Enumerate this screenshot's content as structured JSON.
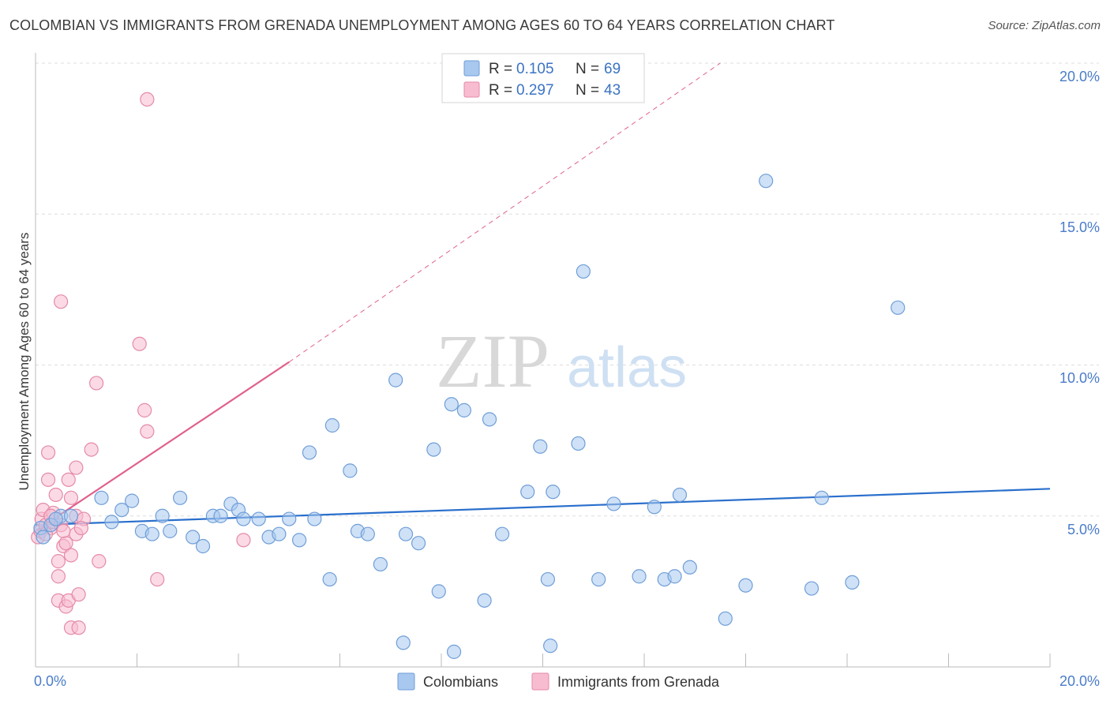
{
  "header": {
    "title": "COLOMBIAN VS IMMIGRANTS FROM GRENADA UNEMPLOYMENT AMONG AGES 60 TO 64 YEARS CORRELATION CHART",
    "source": "Source: ZipAtlas.com"
  },
  "watermark": {
    "zip": "ZIP",
    "atlas": "atlas"
  },
  "legend": {
    "rows": [
      {
        "r_label": "R = ",
        "r_value": "0.105",
        "n_label": "N = ",
        "n_value": "69"
      },
      {
        "r_label": "R = ",
        "r_value": "0.297",
        "n_label": "N = ",
        "n_value": "43"
      }
    ]
  },
  "bottom_legend": {
    "series1": "Colombians",
    "series2": "Immigrants from Grenada"
  },
  "colors": {
    "blue_fill": "#a8c8ef",
    "blue_stroke": "#6f9ed8",
    "blue_line": "#2a6fcc",
    "pink_fill": "#f7bcd0",
    "pink_stroke": "#e58aa8",
    "pink_line": "#e0618c",
    "tick": "#4a7cc9",
    "grid": "#dddddd"
  },
  "chart_data": {
    "type": "scatter",
    "title": "COLOMBIAN VS IMMIGRANTS FROM GRENADA UNEMPLOYMENT AMONG AGES 60 TO 64 YEARS CORRELATION CHART",
    "xlabel": "",
    "ylabel": "Unemployment Among Ages 60 to 64 years",
    "xlim": [
      0,
      20
    ],
    "ylim": [
      0,
      20
    ],
    "x_tick_labels": [
      "0.0%",
      "20.0%"
    ],
    "y_ticks": [
      5,
      10,
      15,
      20
    ],
    "y_tick_labels": [
      "5.0%",
      "10.0%",
      "15.0%",
      "20.0%"
    ],
    "series": [
      {
        "name": "Colombians",
        "R": 0.105,
        "N": 69,
        "trend": {
          "x": [
            0,
            20
          ],
          "y": [
            4.7,
            5.9
          ],
          "style": "solid"
        },
        "points": [
          [
            0.1,
            4.6
          ],
          [
            0.3,
            4.7
          ],
          [
            0.5,
            5.0
          ],
          [
            0.7,
            5.0
          ],
          [
            1.3,
            5.6
          ],
          [
            1.5,
            4.8
          ],
          [
            1.7,
            5.2
          ],
          [
            1.9,
            5.5
          ],
          [
            2.1,
            4.5
          ],
          [
            2.3,
            4.4
          ],
          [
            2.5,
            5.0
          ],
          [
            2.65,
            4.5
          ],
          [
            2.85,
            5.6
          ],
          [
            3.1,
            4.3
          ],
          [
            3.3,
            4.0
          ],
          [
            3.5,
            5.0
          ],
          [
            3.65,
            5.0
          ],
          [
            3.85,
            5.4
          ],
          [
            4.0,
            5.2
          ],
          [
            4.1,
            4.9
          ],
          [
            4.4,
            4.9
          ],
          [
            4.6,
            4.3
          ],
          [
            4.8,
            4.4
          ],
          [
            5.0,
            4.9
          ],
          [
            5.2,
            4.2
          ],
          [
            5.4,
            7.1
          ],
          [
            5.5,
            4.9
          ],
          [
            5.8,
            2.9
          ],
          [
            5.85,
            8.0
          ],
          [
            6.2,
            6.5
          ],
          [
            6.35,
            4.5
          ],
          [
            6.55,
            4.4
          ],
          [
            6.8,
            3.4
          ],
          [
            7.1,
            9.5
          ],
          [
            7.25,
            0.8
          ],
          [
            7.3,
            4.4
          ],
          [
            7.55,
            4.1
          ],
          [
            7.85,
            7.2
          ],
          [
            7.95,
            2.5
          ],
          [
            8.2,
            8.7
          ],
          [
            8.25,
            0.5
          ],
          [
            8.45,
            8.5
          ],
          [
            8.85,
            2.2
          ],
          [
            8.95,
            8.2
          ],
          [
            9.2,
            4.4
          ],
          [
            9.7,
            5.8
          ],
          [
            9.95,
            7.3
          ],
          [
            10.1,
            2.9
          ],
          [
            10.15,
            0.7
          ],
          [
            10.2,
            5.8
          ],
          [
            10.7,
            7.4
          ],
          [
            10.8,
            13.1
          ],
          [
            11.1,
            2.9
          ],
          [
            11.4,
            5.4
          ],
          [
            11.9,
            3.0
          ],
          [
            12.2,
            5.3
          ],
          [
            12.4,
            2.9
          ],
          [
            12.6,
            3.0
          ],
          [
            12.7,
            5.7
          ],
          [
            12.9,
            3.3
          ],
          [
            13.6,
            1.6
          ],
          [
            14.0,
            2.7
          ],
          [
            14.4,
            16.1
          ],
          [
            15.3,
            2.6
          ],
          [
            15.5,
            5.6
          ],
          [
            16.1,
            2.8
          ],
          [
            17.0,
            11.9
          ],
          [
            0.15,
            4.3
          ],
          [
            0.4,
            4.9
          ]
        ]
      },
      {
        "name": "Immigrants from Grenada",
        "R": 0.297,
        "N": 43,
        "trend": {
          "x": [
            0,
            5
          ],
          "y": [
            4.5,
            10.1
          ],
          "style": "solid",
          "extension": {
            "x": [
              5,
              13.5
            ],
            "y": [
              10.1,
              20.0
            ],
            "style": "dashed"
          }
        },
        "points": [
          [
            0.05,
            4.3
          ],
          [
            0.1,
            4.5
          ],
          [
            0.12,
            4.9
          ],
          [
            0.15,
            5.2
          ],
          [
            0.2,
            4.7
          ],
          [
            0.25,
            6.2
          ],
          [
            0.25,
            7.1
          ],
          [
            0.3,
            4.6
          ],
          [
            0.35,
            4.8
          ],
          [
            0.35,
            5.1
          ],
          [
            0.4,
            5.7
          ],
          [
            0.45,
            2.2
          ],
          [
            0.45,
            3.0
          ],
          [
            0.45,
            3.5
          ],
          [
            0.5,
            4.7
          ],
          [
            0.5,
            12.1
          ],
          [
            0.55,
            4.0
          ],
          [
            0.6,
            4.1
          ],
          [
            0.6,
            2.0
          ],
          [
            0.65,
            2.2
          ],
          [
            0.65,
            6.2
          ],
          [
            0.7,
            3.7
          ],
          [
            0.7,
            5.6
          ],
          [
            0.7,
            1.3
          ],
          [
            0.8,
            5.0
          ],
          [
            0.8,
            4.4
          ],
          [
            0.8,
            6.6
          ],
          [
            0.85,
            2.4
          ],
          [
            0.85,
            1.3
          ],
          [
            0.95,
            4.9
          ],
          [
            1.1,
            7.2
          ],
          [
            1.2,
            9.4
          ],
          [
            1.25,
            3.5
          ],
          [
            2.05,
            10.7
          ],
          [
            2.15,
            8.5
          ],
          [
            2.2,
            7.8
          ],
          [
            2.2,
            18.8
          ],
          [
            2.4,
            2.9
          ],
          [
            4.1,
            4.2
          ],
          [
            0.55,
            4.5
          ],
          [
            0.3,
            5.0
          ],
          [
            0.2,
            4.4
          ],
          [
            0.9,
            4.6
          ]
        ]
      }
    ]
  }
}
